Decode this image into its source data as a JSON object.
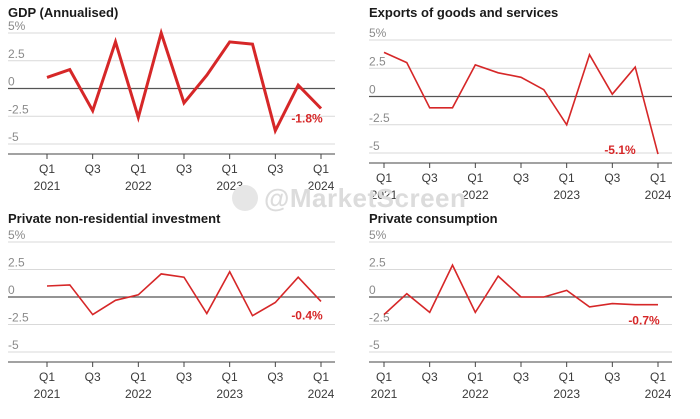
{
  "watermark": "@MarketScreen",
  "colors": {
    "line": "#d62728",
    "grid": "#d9d9d9",
    "zero": "#555555",
    "axis": "#444444"
  },
  "chart_data": [
    {
      "type": "line",
      "title": "GDP (Annualised)",
      "categories": [
        "Q1 2021",
        "Q2 2021",
        "Q3 2021",
        "Q4 2021",
        "Q1 2022",
        "Q2 2022",
        "Q3 2022",
        "Q4 2022",
        "Q1 2023",
        "Q2 2023",
        "Q3 2023",
        "Q4 2023",
        "Q1 2024"
      ],
      "values": [
        1.0,
        1.7,
        -2.0,
        4.2,
        -2.6,
        5.0,
        -1.3,
        1.2,
        4.2,
        4.0,
        -3.8,
        0.3,
        -1.8
      ],
      "ylim": [
        -5,
        5
      ],
      "yticks": [
        "5%",
        "2.5",
        "0",
        "-2.5",
        "-5"
      ],
      "end_label": "-1.8%",
      "line_width": 3
    },
    {
      "type": "line",
      "title": "Exports of goods and services",
      "categories": [
        "Q1 2021",
        "Q2 2021",
        "Q3 2021",
        "Q4 2021",
        "Q1 2022",
        "Q2 2022",
        "Q3 2022",
        "Q4 2022",
        "Q1 2023",
        "Q2 2023",
        "Q3 2023",
        "Q4 2023",
        "Q1 2024"
      ],
      "values": [
        3.9,
        3.0,
        -1.0,
        -1.0,
        2.8,
        2.1,
        1.7,
        0.6,
        -2.5,
        3.7,
        0.2,
        2.6,
        -5.1
      ],
      "ylim": [
        -5,
        5
      ],
      "yticks": [
        "5%",
        "2.5",
        "0",
        "-2.5",
        "-5"
      ],
      "end_label": "-5.1%",
      "line_width": 1.6
    },
    {
      "type": "line",
      "title": "Private non-residential investment",
      "categories": [
        "Q1 2021",
        "Q2 2021",
        "Q3 2021",
        "Q4 2021",
        "Q1 2022",
        "Q2 2022",
        "Q3 2022",
        "Q4 2022",
        "Q1 2023",
        "Q2 2023",
        "Q3 2023",
        "Q4 2023",
        "Q1 2024"
      ],
      "values": [
        1.0,
        1.1,
        -1.6,
        -0.3,
        0.2,
        2.1,
        1.8,
        -1.5,
        2.3,
        -1.7,
        -0.5,
        1.8,
        -0.4
      ],
      "ylim": [
        -5,
        5
      ],
      "yticks": [
        "5%",
        "2.5",
        "0",
        "-2.5",
        "-5"
      ],
      "end_label": "-0.4%",
      "line_width": 1.6
    },
    {
      "type": "line",
      "title": "Private consumption",
      "categories": [
        "Q1 2021",
        "Q2 2021",
        "Q3 2021",
        "Q4 2021",
        "Q1 2022",
        "Q2 2022",
        "Q3 2022",
        "Q4 2022",
        "Q1 2023",
        "Q2 2023",
        "Q3 2023",
        "Q4 2023",
        "Q1 2024"
      ],
      "values": [
        -1.6,
        0.3,
        -1.4,
        2.9,
        -1.4,
        1.9,
        0.0,
        0.0,
        0.6,
        -0.9,
        -0.6,
        -0.7,
        -0.7
      ],
      "ylim": [
        -5,
        5
      ],
      "yticks": [
        "5%",
        "2.5",
        "0",
        "-2.5",
        "-5"
      ],
      "end_label": "-0.7%",
      "line_width": 1.6
    }
  ],
  "x_axis": {
    "ticks": [
      {
        "index": 0,
        "q": "Q1",
        "year": "2021"
      },
      {
        "index": 2,
        "q": "Q3",
        "year": ""
      },
      {
        "index": 4,
        "q": "Q1",
        "year": "2022"
      },
      {
        "index": 6,
        "q": "Q3",
        "year": ""
      },
      {
        "index": 8,
        "q": "Q1",
        "year": "2023"
      },
      {
        "index": 10,
        "q": "Q3",
        "year": ""
      },
      {
        "index": 12,
        "q": "Q1",
        "year": "2024"
      }
    ]
  }
}
